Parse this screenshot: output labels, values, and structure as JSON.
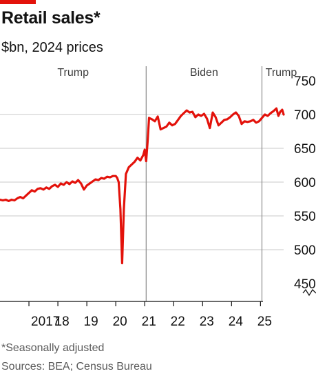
{
  "header": {
    "title": "Retail sales*",
    "subtitle": "$bn, 2024 prices"
  },
  "footer": {
    "footnote": "*Seasonally adjusted",
    "source": "Sources: BEA; Census Bureau"
  },
  "colors": {
    "line": "#e3120b",
    "grid": "#c9c9c9",
    "divider": "#8a8a8a",
    "axis": "#121212",
    "tag": "#e3120b"
  },
  "chart_data": {
    "type": "line",
    "title": "Retail sales*",
    "subtitle": "$bn, 2024 prices",
    "xlabel": "",
    "ylabel": "",
    "xlim": [
      2016.0,
      2025.8
    ],
    "ylim": [
      440,
      760
    ],
    "y_axis_break": true,
    "y_axis_position": "right",
    "grid": "horizontal",
    "y_ticks": [
      450,
      500,
      550,
      600,
      650,
      700,
      750
    ],
    "x_ticks": [
      {
        "value": 2017.0,
        "label": "2017"
      },
      {
        "value": 2018.0,
        "label": "18"
      },
      {
        "value": 2019.0,
        "label": "19"
      },
      {
        "value": 2020.0,
        "label": "20"
      },
      {
        "value": 2021.0,
        "label": "21"
      },
      {
        "value": 2022.0,
        "label": "22"
      },
      {
        "value": 2023.0,
        "label": "23"
      },
      {
        "value": 2024.0,
        "label": "24"
      },
      {
        "value": 2025.0,
        "label": "25"
      }
    ],
    "periods": [
      {
        "label": "Trump",
        "start": 2016.0,
        "end": 2021.05
      },
      {
        "label": "Biden",
        "start": 2021.05,
        "end": 2025.05
      },
      {
        "label": "Trump",
        "start": 2025.05,
        "end": 2025.8
      }
    ],
    "series": [
      {
        "name": "",
        "points": [
          [
            2016.0,
            574
          ],
          [
            2016.1,
            573
          ],
          [
            2016.2,
            574
          ],
          [
            2016.3,
            572
          ],
          [
            2016.4,
            574
          ],
          [
            2016.5,
            573
          ],
          [
            2016.6,
            576
          ],
          [
            2016.7,
            578
          ],
          [
            2016.8,
            576
          ],
          [
            2016.9,
            580
          ],
          [
            2017.0,
            584
          ],
          [
            2017.1,
            588
          ],
          [
            2017.2,
            586
          ],
          [
            2017.3,
            590
          ],
          [
            2017.4,
            591
          ],
          [
            2017.5,
            589
          ],
          [
            2017.6,
            592
          ],
          [
            2017.7,
            590
          ],
          [
            2017.8,
            594
          ],
          [
            2017.9,
            596
          ],
          [
            2018.0,
            593
          ],
          [
            2018.1,
            598
          ],
          [
            2018.2,
            596
          ],
          [
            2018.3,
            600
          ],
          [
            2018.4,
            597
          ],
          [
            2018.5,
            601
          ],
          [
            2018.6,
            599
          ],
          [
            2018.7,
            603
          ],
          [
            2018.8,
            598
          ],
          [
            2018.9,
            589
          ],
          [
            2019.0,
            595
          ],
          [
            2019.1,
            598
          ],
          [
            2019.2,
            601
          ],
          [
            2019.3,
            604
          ],
          [
            2019.4,
            603
          ],
          [
            2019.5,
            606
          ],
          [
            2019.6,
            605
          ],
          [
            2019.7,
            608
          ],
          [
            2019.8,
            607
          ],
          [
            2019.9,
            609
          ],
          [
            2020.0,
            609
          ],
          [
            2020.05,
            606
          ],
          [
            2020.1,
            600
          ],
          [
            2020.16,
            560
          ],
          [
            2020.22,
            480
          ],
          [
            2020.28,
            560
          ],
          [
            2020.35,
            612
          ],
          [
            2020.45,
            622
          ],
          [
            2020.55,
            626
          ],
          [
            2020.65,
            630
          ],
          [
            2020.75,
            636
          ],
          [
            2020.85,
            632
          ],
          [
            2020.95,
            640
          ],
          [
            2021.0,
            648
          ],
          [
            2021.05,
            631
          ],
          [
            2021.1,
            660
          ],
          [
            2021.15,
            695
          ],
          [
            2021.25,
            693
          ],
          [
            2021.35,
            690
          ],
          [
            2021.45,
            697
          ],
          [
            2021.55,
            678
          ],
          [
            2021.65,
            680
          ],
          [
            2021.75,
            682
          ],
          [
            2021.85,
            688
          ],
          [
            2021.95,
            684
          ],
          [
            2022.05,
            686
          ],
          [
            2022.15,
            692
          ],
          [
            2022.25,
            698
          ],
          [
            2022.35,
            702
          ],
          [
            2022.45,
            706
          ],
          [
            2022.55,
            703
          ],
          [
            2022.65,
            704
          ],
          [
            2022.75,
            696
          ],
          [
            2022.85,
            700
          ],
          [
            2022.95,
            698
          ],
          [
            2023.05,
            701
          ],
          [
            2023.15,
            694
          ],
          [
            2023.25,
            680
          ],
          [
            2023.35,
            703
          ],
          [
            2023.45,
            696
          ],
          [
            2023.55,
            684
          ],
          [
            2023.65,
            688
          ],
          [
            2023.75,
            692
          ],
          [
            2023.85,
            693
          ],
          [
            2023.95,
            696
          ],
          [
            2024.05,
            700
          ],
          [
            2024.15,
            703
          ],
          [
            2024.25,
            698
          ],
          [
            2024.35,
            686
          ],
          [
            2024.45,
            690
          ],
          [
            2024.55,
            689
          ],
          [
            2024.65,
            690
          ],
          [
            2024.75,
            692
          ],
          [
            2024.85,
            688
          ],
          [
            2024.95,
            690
          ],
          [
            2025.05,
            695
          ],
          [
            2025.15,
            700
          ],
          [
            2025.25,
            698
          ],
          [
            2025.35,
            702
          ],
          [
            2025.45,
            705
          ],
          [
            2025.55,
            709
          ],
          [
            2025.62,
            698
          ],
          [
            2025.68,
            704
          ],
          [
            2025.75,
            707
          ],
          [
            2025.8,
            700
          ]
        ]
      }
    ]
  }
}
